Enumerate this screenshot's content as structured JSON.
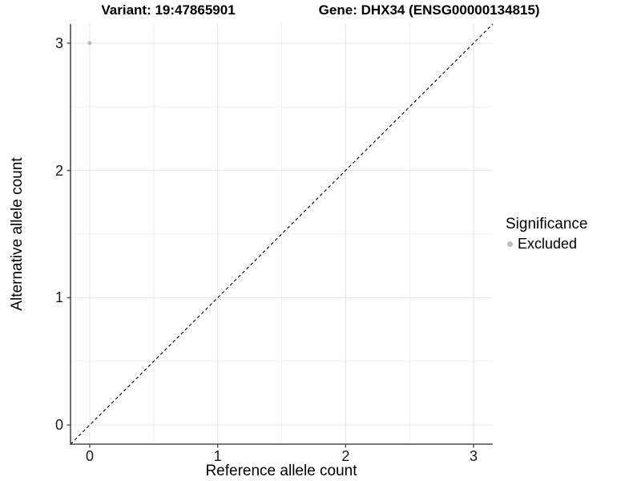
{
  "title": {
    "variant": "Variant: 19:47865901",
    "gene": "Gene: DHX34 (ENSG00000134815)"
  },
  "axes": {
    "x": {
      "label": "Reference allele count",
      "tick_labels": [
        "0",
        "1",
        "2",
        "3"
      ]
    },
    "y": {
      "label": "Alternative allele count",
      "tick_labels": [
        "0",
        "1",
        "2",
        "3"
      ]
    }
  },
  "legend": {
    "title": "Significance",
    "items": [
      {
        "label": "Excluded",
        "color": "#bebebe"
      }
    ]
  },
  "colors": {
    "background": "#ffffff",
    "grid_major": "#e4e4e4",
    "grid_minor": "#f0f0f0",
    "axis_line": "#4d4d4d",
    "tick_text": "#1a1a1a",
    "reference_line": "#000000",
    "excluded_point": "#bebebe"
  },
  "chart_data": {
    "type": "scatter",
    "title": "Variant: 19:47865901    Gene: DHX34 (ENSG00000134815)",
    "xlabel": "Reference allele count",
    "ylabel": "Alternative allele count",
    "xlim": [
      -0.15,
      3.15
    ],
    "ylim": [
      -0.15,
      3.15
    ],
    "x_ticks": [
      0,
      1,
      2,
      3
    ],
    "y_ticks": [
      0,
      1,
      2,
      3
    ],
    "x_minor_ticks": [
      0.5,
      1.5,
      2.5
    ],
    "y_minor_ticks": [
      0.5,
      1.5,
      2.5
    ],
    "grid": "major+minor",
    "legend_position": "right",
    "legend_title": "Significance",
    "series": [
      {
        "name": "Excluded",
        "color": "#bebebe",
        "points": [
          {
            "x": 0,
            "y": 3
          }
        ]
      }
    ],
    "reference_line": {
      "style": "dashed",
      "from": [
        -0.15,
        -0.15
      ],
      "to": [
        3.15,
        3.15
      ]
    }
  }
}
